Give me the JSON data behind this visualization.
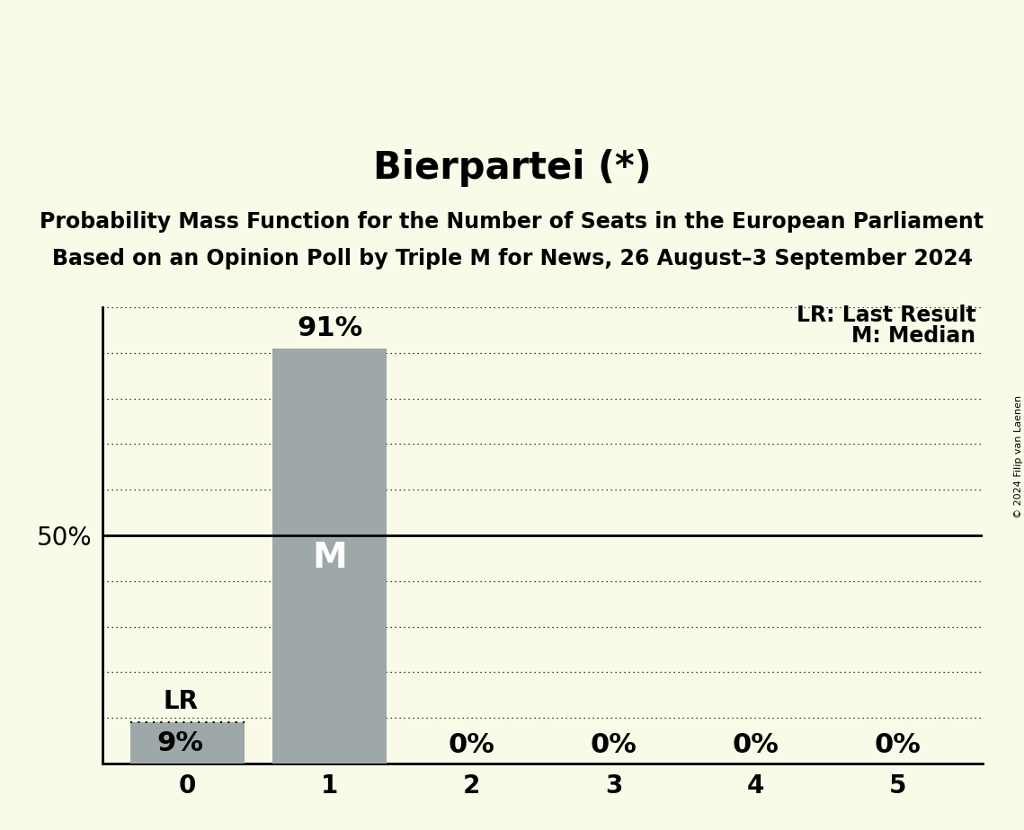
{
  "title": "Bierpartei (*)",
  "subtitle1": "Probability Mass Function for the Number of Seats in the European Parliament",
  "subtitle2": "Based on an Opinion Poll by Triple M for News, 26 August–3 September 2024",
  "copyright": "© 2024 Filip van Laenen",
  "categories": [
    0,
    1,
    2,
    3,
    4,
    5
  ],
  "values": [
    0.09,
    0.91,
    0.0,
    0.0,
    0.0,
    0.0
  ],
  "bar_color": "#9ea8a8",
  "background_color": "#fafae8",
  "median_seat": 1,
  "last_result_seat": 0,
  "last_result_value": 0.09,
  "median_label": "M",
  "lr_label": "LR",
  "legend_lr": "LR: Last Result",
  "legend_m": "M: Median",
  "ylim": [
    0,
    1.0
  ],
  "yticks": [
    0.0,
    0.1,
    0.2,
    0.3,
    0.4,
    0.5,
    0.6,
    0.7,
    0.8,
    0.9,
    1.0
  ],
  "dotted_yticks": [
    0.1,
    0.2,
    0.3,
    0.4,
    0.6,
    0.7,
    0.8,
    0.9,
    1.0
  ],
  "title_fontsize": 30,
  "subtitle_fontsize": 17,
  "tick_fontsize": 20,
  "bar_label_fontsize": 22,
  "annotation_fontsize": 20,
  "legend_fontsize": 17,
  "copyright_fontsize": 8
}
